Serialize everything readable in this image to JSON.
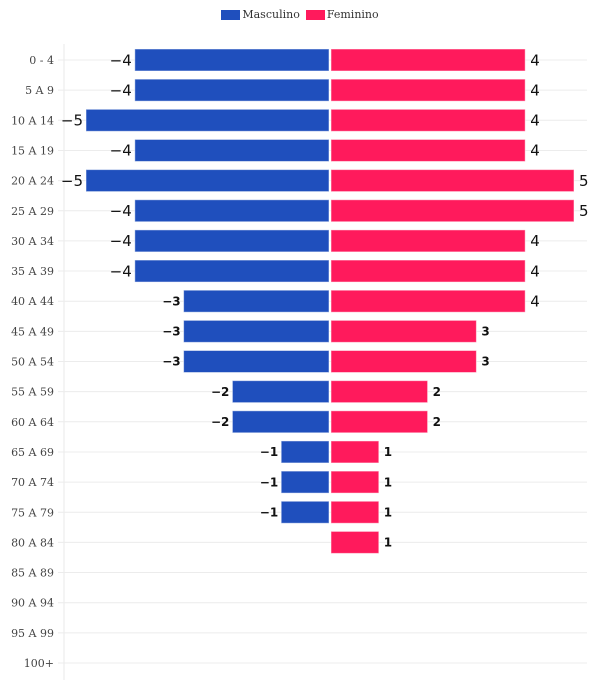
{
  "chart_data": {
    "type": "bar",
    "orientation": "horizontal",
    "subtype": "population-pyramid",
    "title": "",
    "xlabel": "",
    "ylabel": "",
    "categories": [
      "0 - 4",
      "5 A 9",
      "10 A 14",
      "15 A 19",
      "20 A 24",
      "25 A 29",
      "30 A 34",
      "35 A 39",
      "40 A 44",
      "45 A 49",
      "50 A 54",
      "55 A 59",
      "60 A 64",
      "65 A 69",
      "70 A 74",
      "75 A 79",
      "80 A 84",
      "85 A 89",
      "90 A 94",
      "95 A 99",
      "100+"
    ],
    "series": [
      {
        "name": "Masculino",
        "color": "#1f4fbd",
        "values": [
          -4,
          -4,
          -5,
          -4,
          -5,
          -4,
          -4,
          -4,
          -3,
          -3,
          -3,
          -2,
          -2,
          -1,
          -1,
          -1,
          0,
          0,
          0,
          0,
          0
        ]
      },
      {
        "name": "Feminino",
        "color": "#ff1a5c",
        "values": [
          4,
          4,
          4,
          4,
          5,
          5,
          4,
          4,
          4,
          3,
          3,
          2,
          2,
          1,
          1,
          1,
          1,
          0,
          0,
          0,
          0
        ]
      }
    ],
    "xlim": [
      -5.3,
      5.3
    ],
    "grid": true,
    "legend": "top-center",
    "data_labels": true
  }
}
